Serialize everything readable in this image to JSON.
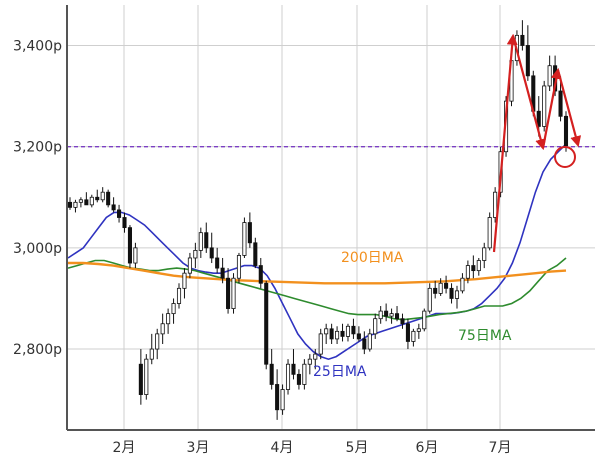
{
  "chart_data": {
    "type": "candlestick",
    "y_unit": "p",
    "ylim": [
      2640,
      3480
    ],
    "y_ticks": [
      "2,800p",
      "3,000p",
      "3,200p",
      "3,400p"
    ],
    "y_tick_values": [
      2800,
      3000,
      3200,
      3400
    ],
    "x_ticks": [
      "2月",
      "3月",
      "4月",
      "5月",
      "6月",
      "7月"
    ],
    "grid": true,
    "reference_line": {
      "value": 3200,
      "style": "dashed",
      "color": "#7b3fc4"
    },
    "candles": [
      [
        3090,
        3100,
        3075,
        3080
      ],
      [
        3080,
        3095,
        3070,
        3090
      ],
      [
        3090,
        3100,
        3080,
        3095
      ],
      [
        3095,
        3110,
        3085,
        3085
      ],
      [
        3085,
        3105,
        3080,
        3100
      ],
      [
        3100,
        3115,
        3090,
        3095
      ],
      [
        3095,
        3120,
        3090,
        3110
      ],
      [
        3110,
        3115,
        3080,
        3085
      ],
      [
        3085,
        3100,
        3070,
        3075
      ],
      [
        3075,
        3085,
        3050,
        3060
      ],
      [
        3060,
        3070,
        3030,
        3040
      ],
      [
        3040,
        3045,
        2960,
        2970
      ],
      [
        2970,
        3010,
        2960,
        3000
      ],
      [
        2770,
        2800,
        2690,
        2710
      ],
      [
        2710,
        2790,
        2700,
        2780
      ],
      [
        2780,
        2830,
        2770,
        2800
      ],
      [
        2800,
        2840,
        2780,
        2830
      ],
      [
        2830,
        2870,
        2810,
        2850
      ],
      [
        2850,
        2880,
        2830,
        2870
      ],
      [
        2870,
        2900,
        2850,
        2890
      ],
      [
        2890,
        2930,
        2880,
        2920
      ],
      [
        2920,
        2960,
        2900,
        2950
      ],
      [
        2950,
        2990,
        2940,
        2980
      ],
      [
        2980,
        3010,
        2960,
        2995
      ],
      [
        2995,
        3040,
        2980,
        3030
      ],
      [
        3030,
        3050,
        2990,
        3000
      ],
      [
        3000,
        3030,
        2970,
        2980
      ],
      [
        2980,
        3000,
        2950,
        2960
      ],
      [
        2960,
        2980,
        2930,
        2940
      ],
      [
        2940,
        2960,
        2870,
        2880
      ],
      [
        2880,
        2950,
        2870,
        2940
      ],
      [
        2940,
        2990,
        2930,
        2985
      ],
      [
        2985,
        3060,
        2980,
        3050
      ],
      [
        3050,
        3070,
        3000,
        3010
      ],
      [
        3010,
        3020,
        2960,
        2965
      ],
      [
        2965,
        2980,
        2920,
        2930
      ],
      [
        2930,
        2935,
        2760,
        2770
      ],
      [
        2770,
        2800,
        2720,
        2730
      ],
      [
        2730,
        2760,
        2660,
        2680
      ],
      [
        2680,
        2730,
        2670,
        2720
      ],
      [
        2720,
        2780,
        2710,
        2770
      ],
      [
        2770,
        2800,
        2740,
        2750
      ],
      [
        2750,
        2760,
        2720,
        2730
      ],
      [
        2730,
        2780,
        2720,
        2770
      ],
      [
        2770,
        2790,
        2750,
        2780
      ],
      [
        2780,
        2800,
        2760,
        2790
      ],
      [
        2790,
        2840,
        2780,
        2830
      ],
      [
        2830,
        2850,
        2810,
        2840
      ],
      [
        2840,
        2850,
        2810,
        2820
      ],
      [
        2820,
        2845,
        2810,
        2835
      ],
      [
        2835,
        2850,
        2815,
        2825
      ],
      [
        2825,
        2850,
        2815,
        2845
      ],
      [
        2845,
        2860,
        2820,
        2830
      ],
      [
        2830,
        2845,
        2815,
        2820
      ],
      [
        2820,
        2835,
        2790,
        2800
      ],
      [
        2800,
        2840,
        2795,
        2830
      ],
      [
        2830,
        2870,
        2820,
        2860
      ],
      [
        2860,
        2885,
        2850,
        2875
      ],
      [
        2875,
        2890,
        2855,
        2865
      ],
      [
        2865,
        2880,
        2850,
        2870
      ],
      [
        2870,
        2885,
        2855,
        2860
      ],
      [
        2860,
        2870,
        2840,
        2850
      ],
      [
        2850,
        2860,
        2800,
        2815
      ],
      [
        2815,
        2840,
        2805,
        2835
      ],
      [
        2835,
        2850,
        2820,
        2840
      ],
      [
        2840,
        2880,
        2835,
        2875
      ],
      [
        2875,
        2930,
        2870,
        2920
      ],
      [
        2920,
        2935,
        2900,
        2910
      ],
      [
        2910,
        2940,
        2905,
        2930
      ],
      [
        2930,
        2945,
        2910,
        2920
      ],
      [
        2920,
        2930,
        2890,
        2900
      ],
      [
        2900,
        2925,
        2880,
        2915
      ],
      [
        2915,
        2950,
        2910,
        2940
      ],
      [
        2940,
        2975,
        2930,
        2965
      ],
      [
        2965,
        2985,
        2940,
        2955
      ],
      [
        2955,
        2980,
        2945,
        2975
      ],
      [
        2975,
        3010,
        2960,
        3000
      ],
      [
        3000,
        3070,
        2995,
        3060
      ],
      [
        3060,
        3120,
        3050,
        3110
      ],
      [
        3110,
        3200,
        3100,
        3190
      ],
      [
        3190,
        3300,
        3180,
        3290
      ],
      [
        3290,
        3380,
        3280,
        3370
      ],
      [
        3370,
        3430,
        3360,
        3420
      ],
      [
        3420,
        3450,
        3390,
        3400
      ],
      [
        3400,
        3440,
        3330,
        3340
      ],
      [
        3340,
        3350,
        3260,
        3270
      ],
      [
        3270,
        3300,
        3220,
        3240
      ],
      [
        3240,
        3330,
        3230,
        3320
      ],
      [
        3320,
        3380,
        3310,
        3360
      ],
      [
        3360,
        3380,
        3300,
        3310
      ],
      [
        3310,
        3340,
        3250,
        3260
      ],
      [
        3260,
        3270,
        3190,
        3200
      ]
    ],
    "series": [
      {
        "name": "25日MA",
        "color": "#2f33c0",
        "values": [
          2980,
          2990,
          3000,
          3020,
          3040,
          3060,
          3070,
          3070,
          3065,
          3055,
          3045,
          3030,
          3015,
          3000,
          2985,
          2970,
          2960,
          2955,
          2952,
          2950,
          2950,
          2955,
          2960,
          2965,
          2965,
          2960,
          2945,
          2920,
          2890,
          2860,
          2830,
          2810,
          2795,
          2785,
          2780,
          2785,
          2795,
          2805,
          2815,
          2825,
          2830,
          2835,
          2840,
          2845,
          2850,
          2855,
          2860,
          2865,
          2870,
          2870,
          2870,
          2872,
          2875,
          2880,
          2890,
          2905,
          2920,
          2940,
          2970,
          3010,
          3060,
          3110,
          3150,
          3175,
          3190,
          3205
        ]
      },
      {
        "name": "75日MA",
        "color": "#2e8b2e",
        "values": [
          2960,
          2965,
          2970,
          2975,
          2975,
          2970,
          2965,
          2960,
          2958,
          2955,
          2955,
          2958,
          2960,
          2958,
          2955,
          2950,
          2945,
          2940,
          2935,
          2930,
          2925,
          2920,
          2915,
          2910,
          2905,
          2900,
          2895,
          2890,
          2885,
          2880,
          2875,
          2870,
          2868,
          2868,
          2868,
          2865,
          2860,
          2858,
          2860,
          2862,
          2865,
          2868,
          2870,
          2872,
          2875,
          2880,
          2885,
          2885,
          2885,
          2890,
          2900,
          2915,
          2935,
          2955,
          2965,
          2980
        ]
      },
      {
        "name": "200日MA",
        "color": "#f2901e",
        "values": [
          2970,
          2970,
          2968,
          2965,
          2960,
          2955,
          2950,
          2945,
          2942,
          2940,
          2938,
          2936,
          2935,
          2934,
          2933,
          2932,
          2931,
          2930,
          2930,
          2930,
          2930,
          2930,
          2931,
          2932,
          2933,
          2934,
          2936,
          2938,
          2941,
          2944,
          2947,
          2950,
          2953,
          2955
        ]
      }
    ],
    "annotations": [
      "200日MA",
      "75日MA",
      "25日MA"
    ]
  }
}
